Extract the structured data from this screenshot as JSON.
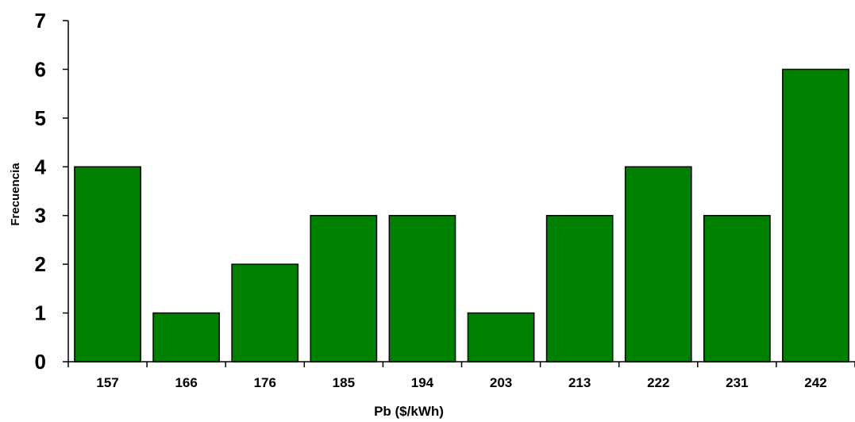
{
  "chart_data": {
    "type": "bar",
    "categories": [
      "157",
      "166",
      "176",
      "185",
      "194",
      "203",
      "213",
      "222",
      "231",
      "242"
    ],
    "values": [
      4,
      1,
      2,
      3,
      3,
      1,
      3,
      4,
      3,
      6
    ],
    "title": "",
    "xlabel": "Pb ($/kWh)",
    "ylabel": "Frecuencia",
    "ylim": [
      0,
      7
    ],
    "yticks": [
      0,
      1,
      2,
      3,
      4,
      5,
      6,
      7
    ],
    "grid": false,
    "bar_color": "#008000",
    "bar_edge_color": "#000000"
  }
}
